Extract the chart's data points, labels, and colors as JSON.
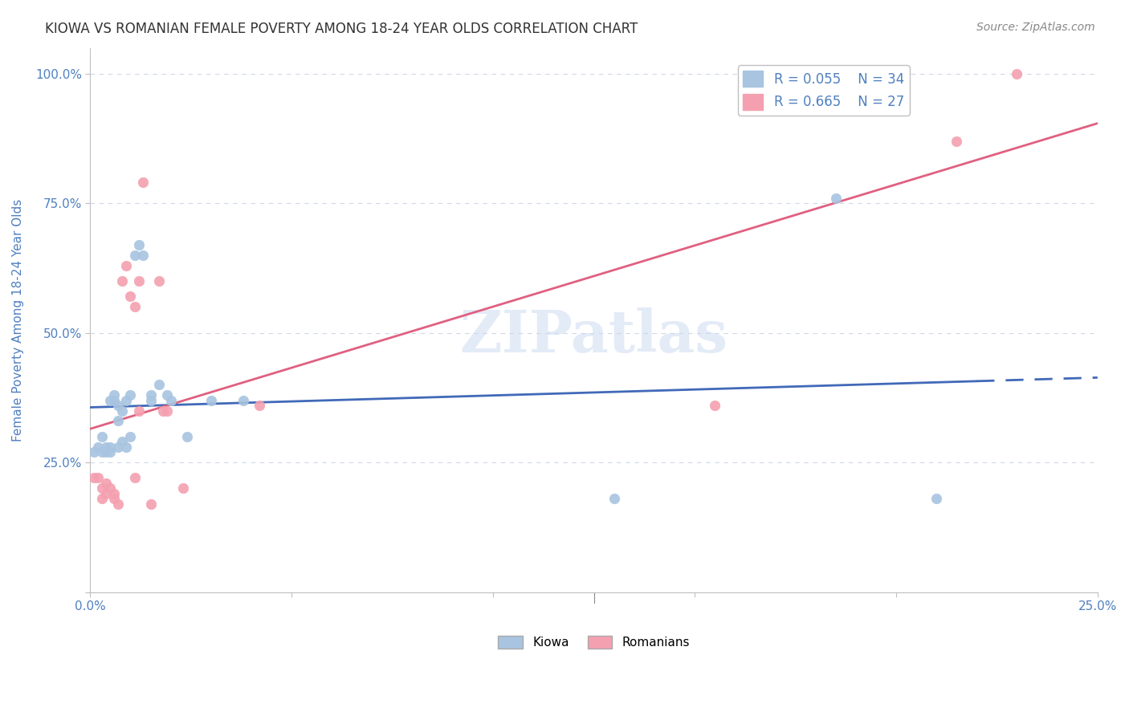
{
  "title": "KIOWA VS ROMANIAN FEMALE POVERTY AMONG 18-24 YEAR OLDS CORRELATION CHART",
  "source": "Source: ZipAtlas.com",
  "xlabel": "",
  "ylabel": "Female Poverty Among 18-24 Year Olds",
  "xlim": [
    0.0,
    0.25
  ],
  "ylim": [
    0.0,
    1.05
  ],
  "xticks": [
    0.0,
    0.05,
    0.1,
    0.15,
    0.2,
    0.25
  ],
  "xticklabels": [
    "0.0%",
    "",
    "",
    "",
    "",
    "25.0%"
  ],
  "yticks": [
    0.0,
    0.25,
    0.5,
    0.75,
    1.0
  ],
  "yticklabels": [
    "",
    "25.0%",
    "50.0%",
    "75.0%",
    "100.0%"
  ],
  "kiowa_color": "#a8c4e0",
  "romanian_color": "#f4a0b0",
  "kiowa_line_color": "#4169b8",
  "romanian_line_color": "#e06080",
  "kiowa_R": 0.055,
  "kiowa_N": 34,
  "romanian_R": 0.665,
  "romanian_N": 27,
  "watermark": "ZIPatlas",
  "watermark_color": "#c8d8f0",
  "axis_color": "#5080c0",
  "grid_color": "#d0d8e8",
  "background_color": "#ffffff",
  "kiowa_x": [
    0.001,
    0.002,
    0.003,
    0.003,
    0.004,
    0.004,
    0.005,
    0.005,
    0.005,
    0.006,
    0.006,
    0.007,
    0.007,
    0.007,
    0.008,
    0.008,
    0.009,
    0.009,
    0.01,
    0.01,
    0.011,
    0.012,
    0.013,
    0.015,
    0.015,
    0.017,
    0.019,
    0.02,
    0.024,
    0.03,
    0.038,
    0.13,
    0.185,
    0.21
  ],
  "kiowa_y": [
    0.27,
    0.28,
    0.27,
    0.3,
    0.27,
    0.28,
    0.27,
    0.28,
    0.37,
    0.37,
    0.38,
    0.28,
    0.33,
    0.36,
    0.29,
    0.35,
    0.28,
    0.37,
    0.3,
    0.38,
    0.65,
    0.67,
    0.65,
    0.37,
    0.38,
    0.4,
    0.38,
    0.37,
    0.3,
    0.37,
    0.37,
    0.18,
    0.76,
    0.18
  ],
  "romanian_x": [
    0.001,
    0.002,
    0.003,
    0.003,
    0.004,
    0.004,
    0.005,
    0.006,
    0.006,
    0.007,
    0.008,
    0.009,
    0.01,
    0.011,
    0.011,
    0.012,
    0.012,
    0.013,
    0.015,
    0.017,
    0.018,
    0.019,
    0.023,
    0.042,
    0.155,
    0.215,
    0.23
  ],
  "romanian_y": [
    0.22,
    0.22,
    0.18,
    0.2,
    0.19,
    0.21,
    0.2,
    0.18,
    0.19,
    0.17,
    0.6,
    0.63,
    0.57,
    0.55,
    0.22,
    0.6,
    0.35,
    0.79,
    0.17,
    0.6,
    0.35,
    0.35,
    0.2,
    0.36,
    0.36,
    0.87,
    1.0
  ]
}
